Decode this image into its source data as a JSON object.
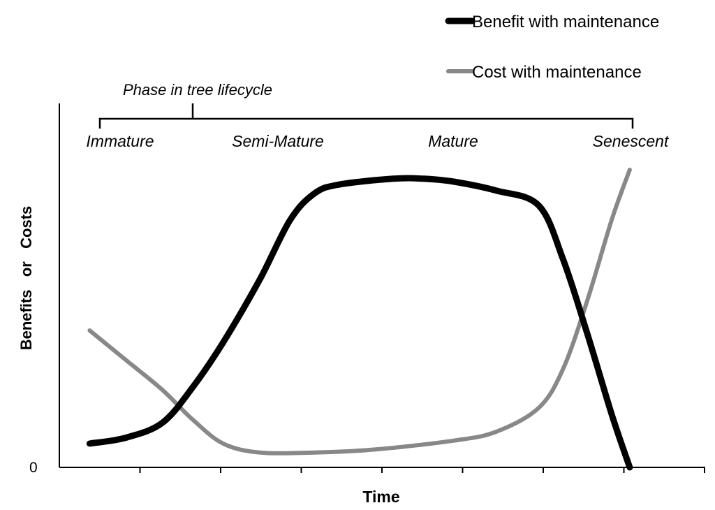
{
  "chart_data": {
    "type": "line",
    "title": "",
    "xlabel": "Time",
    "ylabel": "Benefits   or   Costs",
    "y_tick_labels": [
      "0"
    ],
    "xlim": [
      0,
      10
    ],
    "ylim": [
      0,
      10
    ],
    "grid": false,
    "legend_position": "top-right",
    "annotation": {
      "title": "Phase in tree lifecycle",
      "phases": [
        "Immature",
        "Semi-Mature",
        "Mature",
        "Senescent"
      ]
    },
    "series": [
      {
        "name": "Benefit with maintenance",
        "color": "#000000",
        "x": [
          0.5,
          1.1,
          1.7,
          2.2,
          2.7,
          3.3,
          3.8,
          4.2,
          4.6,
          5.5,
          6.0,
          6.5,
          7.2,
          7.9,
          8.3,
          8.7,
          9.1,
          9.4
        ],
        "y": [
          0.8,
          1.0,
          1.5,
          2.7,
          4.2,
          6.3,
          8.3,
          9.2,
          9.5,
          9.7,
          9.7,
          9.6,
          9.3,
          8.8,
          7.0,
          4.5,
          1.8,
          0.0
        ]
      },
      {
        "name": "Cost with maintenance",
        "color": "#888888",
        "x": [
          0.5,
          1.1,
          1.7,
          2.2,
          2.7,
          3.3,
          4.2,
          5.2,
          6.5,
          7.2,
          7.9,
          8.3,
          8.7,
          9.1,
          9.4
        ],
        "y": [
          4.6,
          3.6,
          2.6,
          1.6,
          0.8,
          0.5,
          0.5,
          0.6,
          0.9,
          1.2,
          2.0,
          3.3,
          5.6,
          8.3,
          10.0
        ]
      }
    ]
  }
}
